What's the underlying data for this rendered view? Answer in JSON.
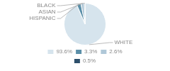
{
  "chart_data": {
    "type": "pie",
    "categories": [
      "WHITE",
      "HISPANIC",
      "ASIAN",
      "BLACK"
    ],
    "values": [
      93.6,
      3.3,
      2.6,
      0.5
    ],
    "value_labels": [
      "93.6%",
      "3.3%",
      "2.6%",
      "0.5%"
    ],
    "colors": [
      "#d6e4ed",
      "#5b8fa8",
      "#b0c8d8",
      "#2d4f6b"
    ],
    "legend": "bottom"
  }
}
